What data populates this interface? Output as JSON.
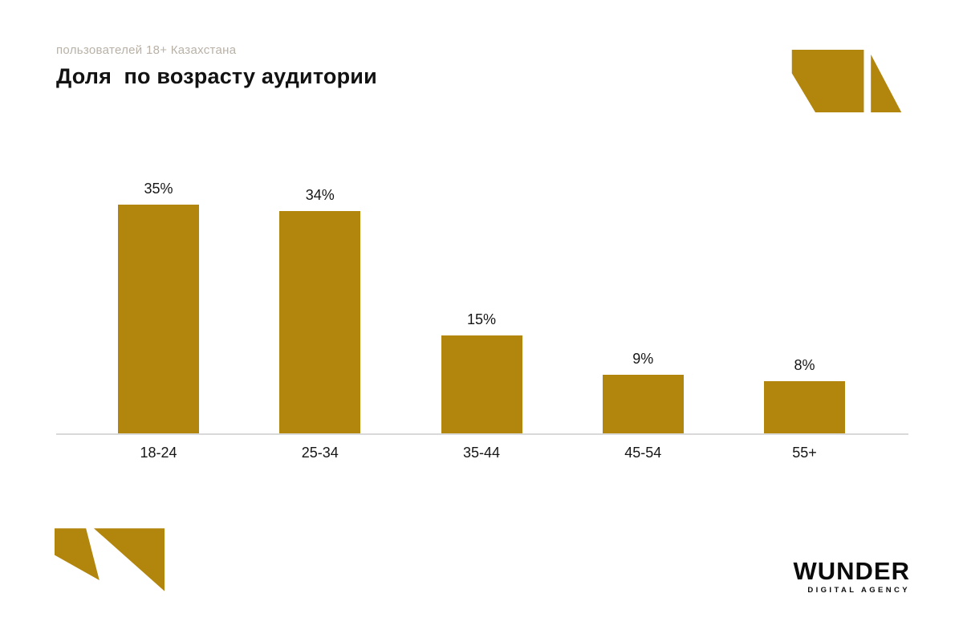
{
  "header": {
    "subtitle": "пользователей 18+ Казахстана",
    "title": "Доля  по возрасту аудитории"
  },
  "chart_data": {
    "type": "bar",
    "title": "Доля по возрасту аудитории",
    "subtitle": "пользователей 18+ Казахстана",
    "categories": [
      "18-24",
      "25-34",
      "35-44",
      "45-54",
      "55+"
    ],
    "values": [
      35,
      34,
      15,
      9,
      8
    ],
    "value_labels": [
      "35%",
      "34%",
      "15%",
      "9%",
      "8%"
    ],
    "xlabel": "",
    "ylabel": "",
    "ylim": [
      0,
      40
    ],
    "grid": false,
    "legend": false,
    "bar_color": "#b2850d",
    "axis_line_color": "#d9d9d9",
    "value_label_position": "above-bar"
  },
  "footer": {
    "logo_text": "WUNDER",
    "logo_subtext": "DIGITAL AGENCY"
  },
  "colors": {
    "accent_gold": "#b2850d",
    "subtitle_gray": "#b9b1a6",
    "text_black": "#161616",
    "background": "#ffffff"
  }
}
